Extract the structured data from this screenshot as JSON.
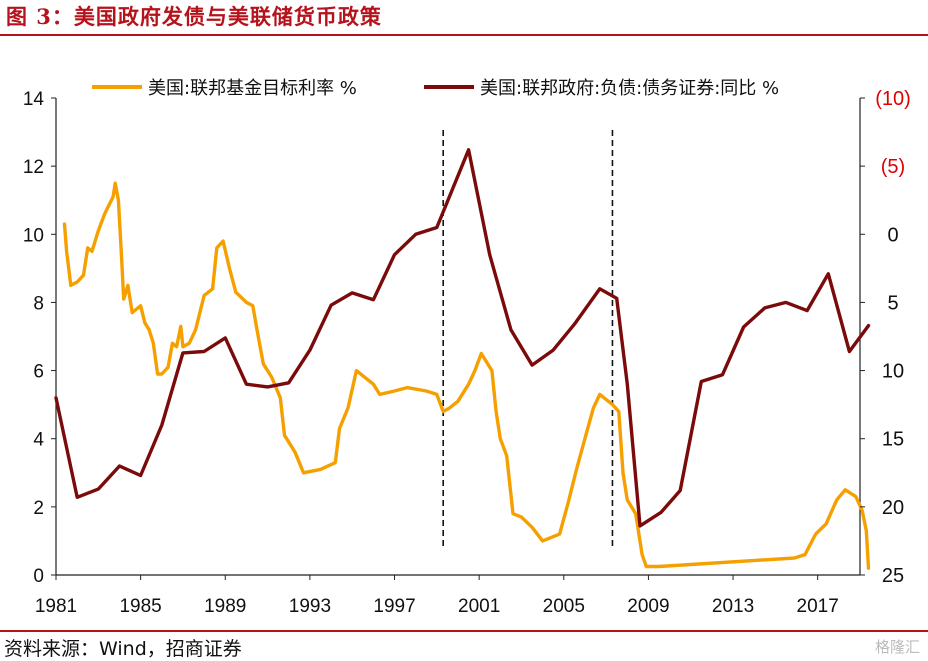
{
  "header": {
    "title": "图 3：美国政府发债与美联储货币政策"
  },
  "footer": {
    "source": "资料来源：Wind，招商证券",
    "watermark": "格隆汇"
  },
  "colors": {
    "brand_red": "#b5121b",
    "fed_rate": "#f5a000",
    "debt_growth": "#7b0a0a",
    "right_negative_label": "#e00000"
  },
  "chart_data": {
    "type": "line",
    "title": "",
    "legend_position": "top",
    "grid": false,
    "x_ticks": [
      "1981",
      "1985",
      "1989",
      "1993",
      "1997",
      "2001",
      "2005",
      "2009",
      "2013",
      "2017"
    ],
    "xlim": [
      1981,
      2019
    ],
    "y_left": {
      "ylim": [
        0,
        14
      ],
      "ticks": [
        "0",
        "2",
        "4",
        "6",
        "8",
        "10",
        "12",
        "14"
      ]
    },
    "y_right": {
      "inverted": true,
      "ylim": [
        -10,
        25
      ],
      "ticks": [
        {
          "value": -10,
          "label": "(10)"
        },
        {
          "value": -5,
          "label": "(5)"
        },
        {
          "value": 0,
          "label": "0"
        },
        {
          "value": 5,
          "label": "5"
        },
        {
          "value": 10,
          "label": "10"
        },
        {
          "value": 15,
          "label": "15"
        },
        {
          "value": 20,
          "label": "20"
        },
        {
          "value": 25,
          "label": "25"
        }
      ]
    },
    "vertical_lines": [
      1999.3,
      2007.3
    ],
    "series": [
      {
        "name": "美国:联邦基金目标利率 %",
        "axis": "left",
        "points": [
          [
            1981.4,
            10.3
          ],
          [
            1981.5,
            9.5
          ],
          [
            1981.7,
            8.5
          ],
          [
            1982.0,
            8.6
          ],
          [
            1982.3,
            8.8
          ],
          [
            1982.5,
            9.6
          ],
          [
            1982.7,
            9.5
          ],
          [
            1983.0,
            10.1
          ],
          [
            1983.3,
            10.6
          ],
          [
            1983.7,
            11.1
          ],
          [
            1983.8,
            11.5
          ],
          [
            1983.95,
            11.0
          ],
          [
            1984.1,
            9.3
          ],
          [
            1984.2,
            8.1
          ],
          [
            1984.4,
            8.5
          ],
          [
            1984.6,
            7.7
          ],
          [
            1984.8,
            7.8
          ],
          [
            1985.0,
            7.9
          ],
          [
            1985.2,
            7.4
          ],
          [
            1985.4,
            7.2
          ],
          [
            1985.6,
            6.8
          ],
          [
            1985.8,
            5.9
          ],
          [
            1986.0,
            5.9
          ],
          [
            1986.3,
            6.1
          ],
          [
            1986.5,
            6.8
          ],
          [
            1986.7,
            6.7
          ],
          [
            1986.9,
            7.3
          ],
          [
            1987.0,
            6.7
          ],
          [
            1987.3,
            6.8
          ],
          [
            1987.6,
            7.2
          ],
          [
            1988.0,
            8.2
          ],
          [
            1988.4,
            8.4
          ],
          [
            1988.6,
            9.6
          ],
          [
            1988.9,
            9.8
          ],
          [
            1989.2,
            9.0
          ],
          [
            1989.5,
            8.3
          ],
          [
            1990.0,
            8.0
          ],
          [
            1990.3,
            7.9
          ],
          [
            1990.5,
            7.2
          ],
          [
            1990.8,
            6.2
          ],
          [
            1991.2,
            5.8
          ],
          [
            1991.6,
            5.2
          ],
          [
            1991.8,
            4.1
          ],
          [
            1992.3,
            3.6
          ],
          [
            1992.7,
            3.0
          ],
          [
            1993.5,
            3.1
          ],
          [
            1994.2,
            3.3
          ],
          [
            1994.4,
            4.3
          ],
          [
            1994.8,
            4.9
          ],
          [
            1995.2,
            6.0
          ],
          [
            1995.6,
            5.8
          ],
          [
            1996.0,
            5.6
          ],
          [
            1996.3,
            5.3
          ],
          [
            1997.0,
            5.4
          ],
          [
            1997.6,
            5.5
          ],
          [
            1998.5,
            5.4
          ],
          [
            1999.0,
            5.3
          ],
          [
            1999.3,
            4.8
          ],
          [
            1999.6,
            4.9
          ],
          [
            2000.0,
            5.1
          ],
          [
            2000.5,
            5.6
          ],
          [
            2000.8,
            6.0
          ],
          [
            2001.1,
            6.5
          ],
          [
            2001.6,
            6.0
          ],
          [
            2001.8,
            4.8
          ],
          [
            2002.0,
            4.0
          ],
          [
            2002.3,
            3.5
          ],
          [
            2002.6,
            1.8
          ],
          [
            2003.0,
            1.7
          ],
          [
            2003.5,
            1.4
          ],
          [
            2004.0,
            1.0
          ],
          [
            2004.8,
            1.2
          ],
          [
            2005.2,
            2.1
          ],
          [
            2005.6,
            3.1
          ],
          [
            2006.0,
            4.0
          ],
          [
            2006.4,
            4.9
          ],
          [
            2006.7,
            5.3
          ],
          [
            2007.3,
            5.0
          ],
          [
            2007.6,
            4.8
          ],
          [
            2007.8,
            3.0
          ],
          [
            2008.0,
            2.2
          ],
          [
            2008.4,
            1.8
          ],
          [
            2008.7,
            0.6
          ],
          [
            2008.9,
            0.25
          ],
          [
            2009.5,
            0.25
          ],
          [
            2015.9,
            0.5
          ],
          [
            2016.4,
            0.6
          ],
          [
            2016.9,
            1.2
          ],
          [
            2017.4,
            1.5
          ],
          [
            2017.9,
            2.2
          ],
          [
            2018.3,
            2.5
          ],
          [
            2018.8,
            2.3
          ],
          [
            2019.1,
            1.9
          ],
          [
            2019.3,
            1.3
          ],
          [
            2019.4,
            0.2
          ]
        ]
      },
      {
        "name": "美国:联邦政府:负债:债务证券:同比 %",
        "axis": "right",
        "points": [
          [
            1981.0,
            12.0
          ],
          [
            1982.0,
            19.3
          ],
          [
            1983.0,
            18.7
          ],
          [
            1984.0,
            17.0
          ],
          [
            1985.0,
            17.7
          ],
          [
            1986.0,
            14.0
          ],
          [
            1987.0,
            8.7
          ],
          [
            1988.0,
            8.6
          ],
          [
            1989.0,
            7.6
          ],
          [
            1990.0,
            11.0
          ],
          [
            1991.0,
            11.2
          ],
          [
            1992.0,
            10.9
          ],
          [
            1993.0,
            8.5
          ],
          [
            1994.0,
            5.2
          ],
          [
            1995.0,
            4.3
          ],
          [
            1996.0,
            4.8
          ],
          [
            1997.0,
            1.5
          ],
          [
            1998.0,
            0.0
          ],
          [
            1999.0,
            -0.5
          ],
          [
            2000.5,
            -6.2
          ],
          [
            2001.5,
            1.5
          ],
          [
            2002.5,
            7.0
          ],
          [
            2003.5,
            9.6
          ],
          [
            2004.5,
            8.5
          ],
          [
            2005.5,
            6.6
          ],
          [
            2006.7,
            4.0
          ],
          [
            2007.5,
            4.7
          ],
          [
            2008.0,
            11.0
          ],
          [
            2008.6,
            21.4
          ],
          [
            2009.6,
            20.4
          ],
          [
            2010.5,
            18.8
          ],
          [
            2011.5,
            10.8
          ],
          [
            2012.5,
            10.3
          ],
          [
            2013.5,
            6.8
          ],
          [
            2014.5,
            5.4
          ],
          [
            2015.5,
            5.0
          ],
          [
            2016.5,
            5.6
          ],
          [
            2017.5,
            2.9
          ],
          [
            2018.5,
            8.6
          ],
          [
            2019.4,
            6.7
          ]
        ]
      }
    ]
  }
}
